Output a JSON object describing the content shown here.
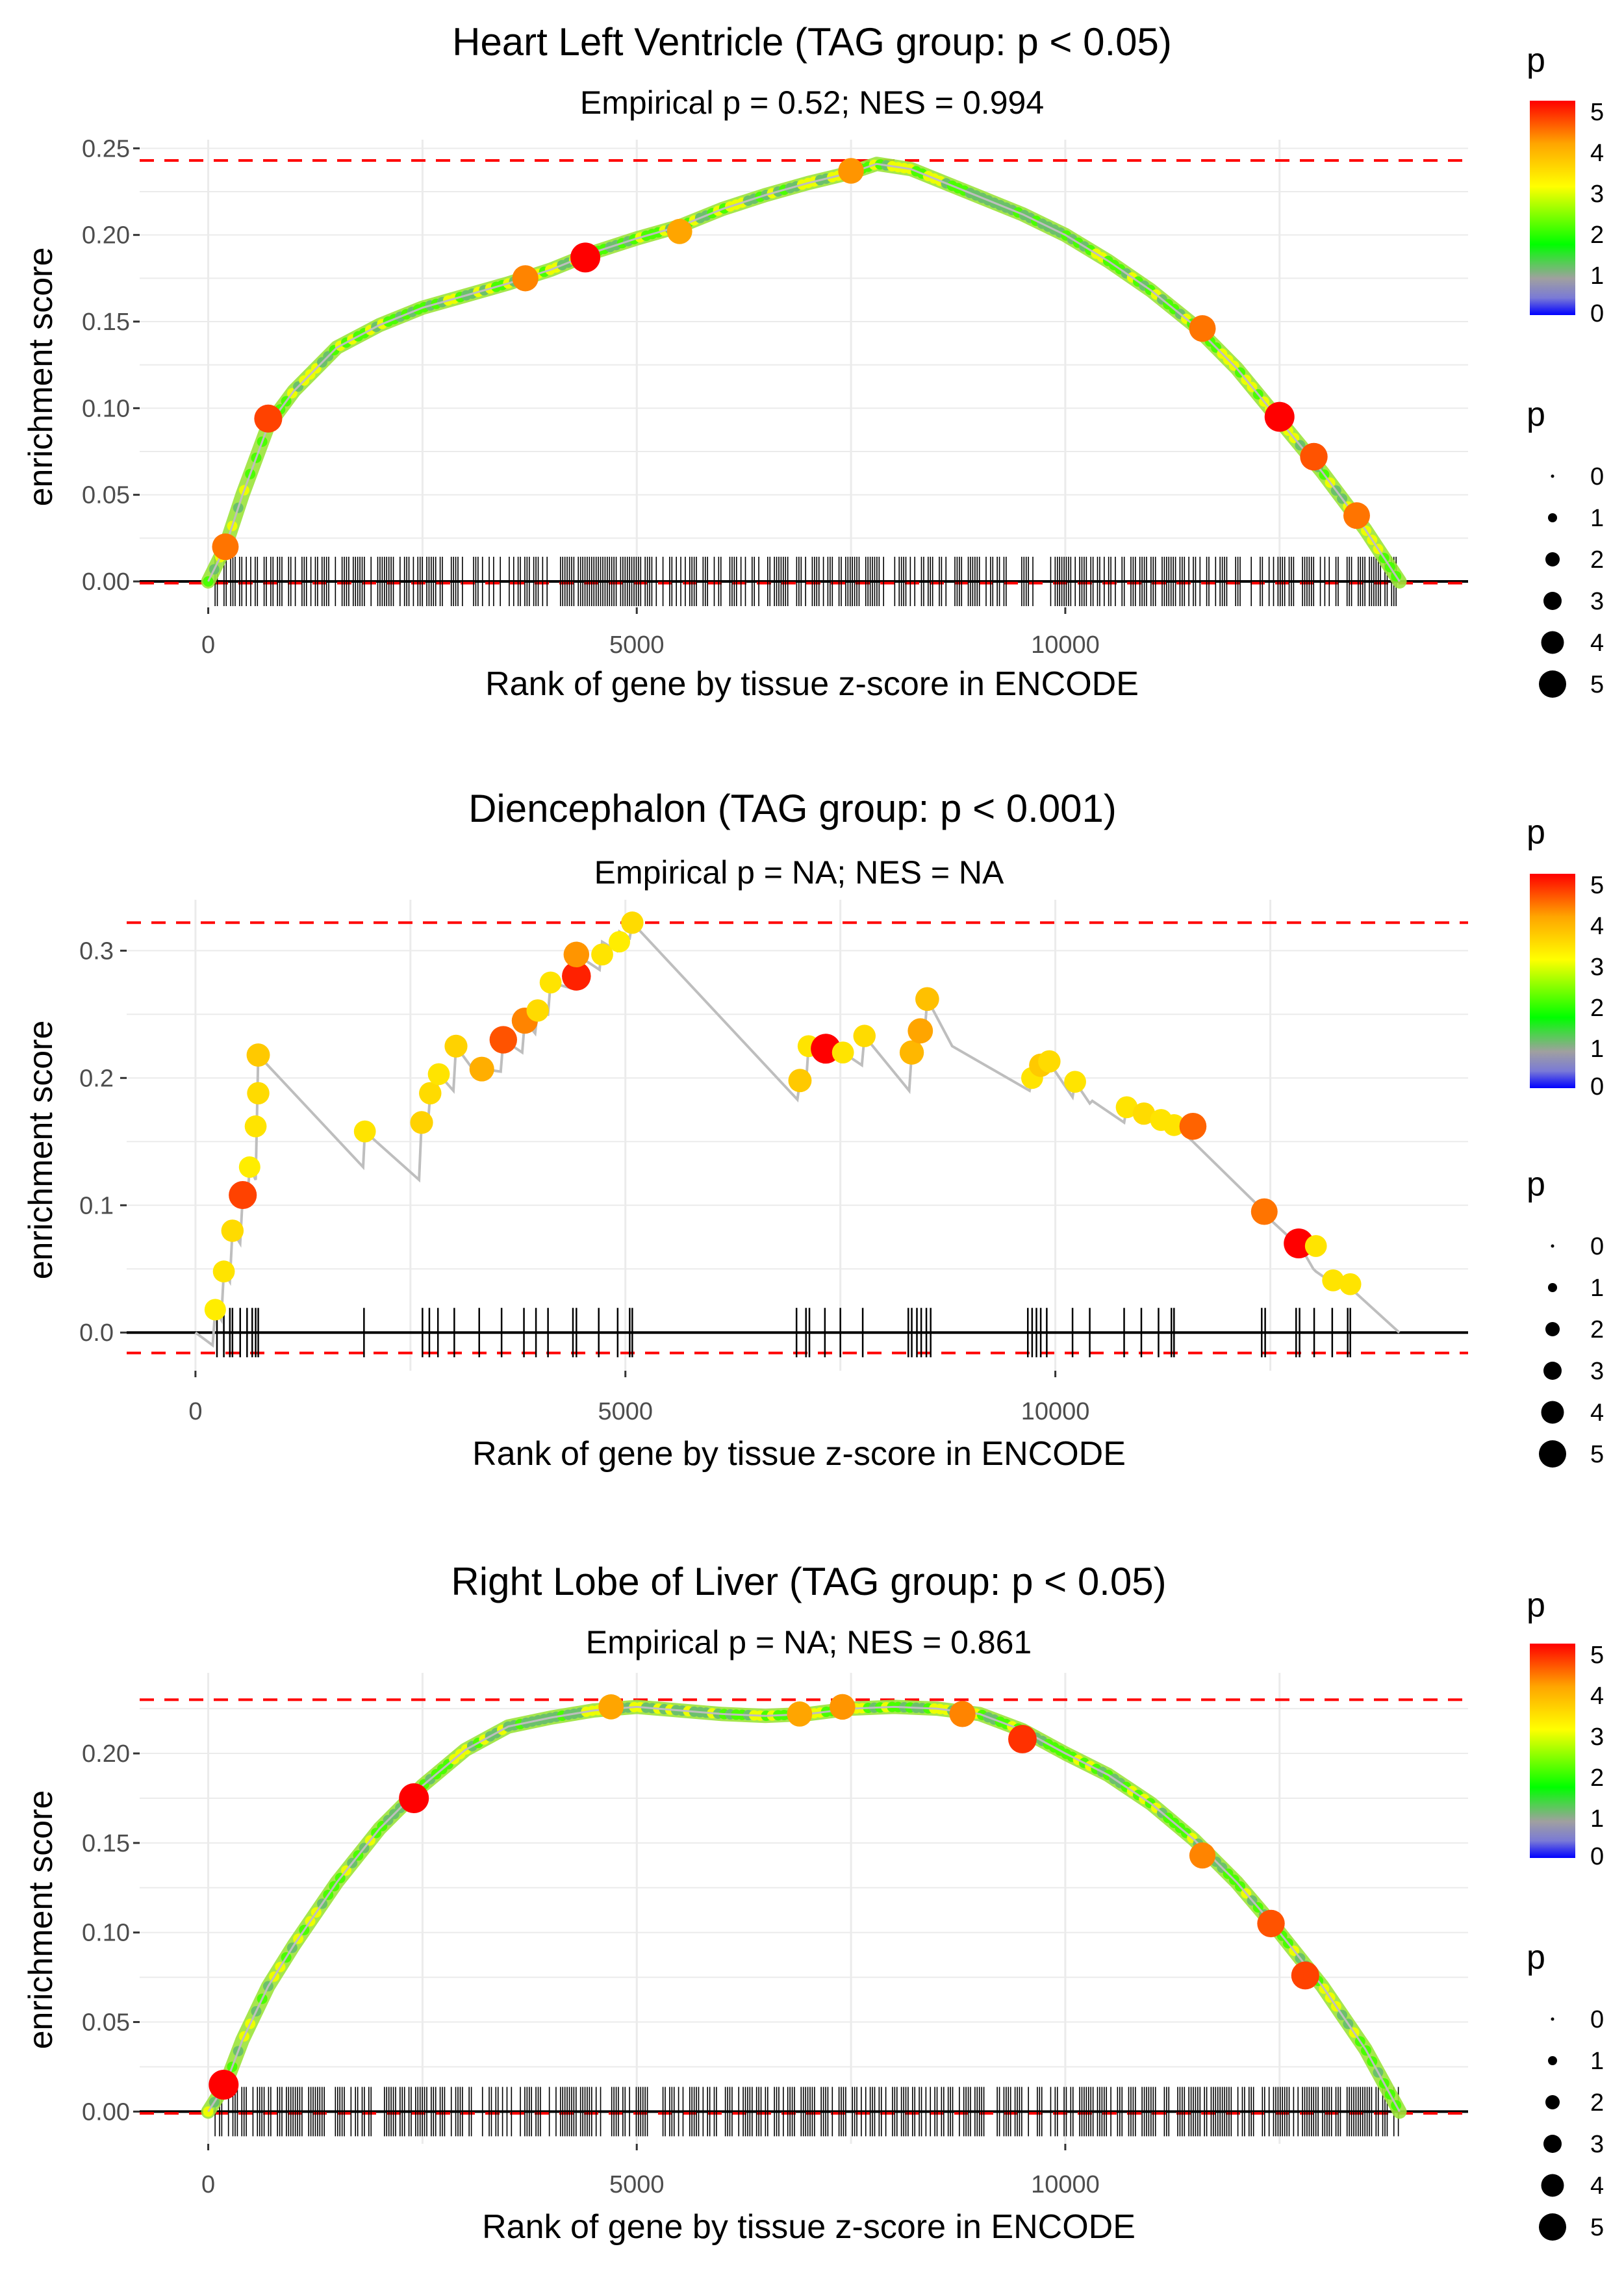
{
  "colors": {
    "background": "#ffffff",
    "gridline": "#ebebeb",
    "threshold": "#ff0000",
    "curve": "#bebebe",
    "rug": "#000000",
    "legend_point": "#000000"
  },
  "chart_data": [
    {
      "type": "line",
      "title": "Heart Left Ventricle (TAG group: p < 0.05)",
      "subtitle": "Empirical p = 0.52; NES = 0.994",
      "xlabel": "Rank of gene by tissue z-score in ENCODE",
      "ylabel": "enrichment score",
      "xlim": [
        -800,
        14700
      ],
      "ylim": [
        -0.015,
        0.255
      ],
      "x_ticks": [
        0,
        5000,
        10000
      ],
      "x_tick_labels": [
        "0",
        "5000",
        "10000"
      ],
      "y_ticks": [
        0,
        0.05,
        0.1,
        0.15,
        0.2,
        0.25
      ],
      "y_tick_labels": [
        "0.00",
        "0.05",
        "0.10",
        "0.15",
        "0.20",
        "0.25"
      ],
      "threshold_upper": 0.243,
      "threshold_lower": -0.001,
      "rug_mode": "dense",
      "rug_range": [
        80,
        13900
      ],
      "curve": {
        "x": [
          0,
          200,
          400,
          700,
          1000,
          1500,
          2000,
          2500,
          3000,
          3500,
          4000,
          4500,
          5000,
          5500,
          6000,
          6500,
          7000,
          7500,
          7800,
          8200,
          8500,
          9000,
          9500,
          10000,
          10500,
          11000,
          11500,
          12000,
          12500,
          13000,
          13500,
          13900
        ],
        "y": [
          0,
          0.02,
          0.05,
          0.09,
          0.11,
          0.135,
          0.148,
          0.158,
          0.165,
          0.172,
          0.18,
          0.19,
          0.198,
          0.205,
          0.215,
          0.223,
          0.23,
          0.236,
          0.241,
          0.238,
          0.232,
          0.222,
          0.212,
          0.2,
          0.185,
          0.168,
          0.148,
          0.123,
          0.093,
          0.063,
          0.03,
          0.0
        ]
      },
      "highlight_points": [
        {
          "x": 200,
          "y": 0.02,
          "p": 4.3
        },
        {
          "x": 700,
          "y": 0.094,
          "p": 4.6
        },
        {
          "x": 3700,
          "y": 0.175,
          "p": 4.2
        },
        {
          "x": 4400,
          "y": 0.187,
          "p": 5.0
        },
        {
          "x": 5500,
          "y": 0.202,
          "p": 4.0
        },
        {
          "x": 7500,
          "y": 0.237,
          "p": 4.1
        },
        {
          "x": 11600,
          "y": 0.146,
          "p": 4.3
        },
        {
          "x": 12500,
          "y": 0.095,
          "p": 5.0
        },
        {
          "x": 12900,
          "y": 0.072,
          "p": 4.5
        },
        {
          "x": 13400,
          "y": 0.038,
          "p": 4.3
        }
      ]
    },
    {
      "type": "line",
      "title": "Diencephalon (TAG group: p < 0.001)",
      "subtitle": "Empirical p = NA; NES = NA",
      "xlabel": "Rank of gene by tissue z-score in ENCODE",
      "ylabel": "enrichment score",
      "xlim": [
        -800,
        14800
      ],
      "ylim": [
        -0.03,
        0.34
      ],
      "x_ticks": [
        0,
        5000,
        10000
      ],
      "x_tick_labels": [
        "0",
        "5000",
        "10000"
      ],
      "y_ticks": [
        0,
        0.1,
        0.2,
        0.3
      ],
      "y_tick_labels": [
        "0.0",
        "0.1",
        "0.2",
        "0.3"
      ],
      "threshold_upper": 0.322,
      "threshold_lower": -0.016,
      "rug_mode": "hits",
      "curve": {
        "x": [
          0,
          200,
          230,
          300,
          330,
          400,
          430,
          520,
          550,
          600,
          630,
          700,
          730,
          1950,
          1970,
          2600,
          2630,
          2700,
          2730,
          2800,
          2830,
          3000,
          3030,
          3300,
          3330,
          3550,
          3580,
          3800,
          3830,
          3950,
          3980,
          4100,
          4130,
          4400,
          4430,
          4700,
          4730,
          4900,
          4930,
          5050,
          5080,
          7000,
          7030,
          7100,
          7130,
          7300,
          7330,
          7500,
          7530,
          7750,
          7780,
          8300,
          8330,
          8400,
          8430,
          8480,
          8510,
          8800,
          9700,
          9730,
          9800,
          9830,
          9900,
          9930,
          10000,
          10200,
          10230,
          10400,
          10430,
          10800,
          10830,
          11000,
          11030,
          11200,
          11230,
          11350,
          11380,
          11600,
          12400,
          12430,
          12800,
          12830,
          13000,
          13030,
          13200,
          13230,
          13400,
          13430,
          14000
        ],
        "y": [
          0,
          -0.01,
          0.018,
          0.01,
          0.048,
          0.04,
          0.08,
          0.07,
          0.108,
          0.1,
          0.13,
          0.12,
          0.218,
          0.13,
          0.158,
          0.12,
          0.165,
          0.16,
          0.188,
          0.185,
          0.203,
          0.19,
          0.225,
          0.2,
          0.207,
          0.205,
          0.23,
          0.22,
          0.245,
          0.235,
          0.253,
          0.25,
          0.275,
          0.27,
          0.297,
          0.285,
          0.307,
          0.3,
          0.315,
          0.31,
          0.322,
          0.183,
          0.198,
          0.195,
          0.225,
          0.213,
          0.223,
          0.213,
          0.22,
          0.21,
          0.233,
          0.19,
          0.22,
          0.215,
          0.237,
          0.235,
          0.262,
          0.225,
          0.19,
          0.2,
          0.195,
          0.21,
          0.205,
          0.213,
          0.205,
          0.185,
          0.197,
          0.18,
          0.182,
          0.165,
          0.177,
          0.165,
          0.172,
          0.162,
          0.167,
          0.157,
          0.163,
          0.15,
          0.097,
          0.093,
          0.07,
          0.07,
          0.05,
          0.048,
          0.04,
          0.041,
          0.04,
          0.035,
          0.0
        ]
      },
      "highlight_points": [
        {
          "x": 230,
          "y": 0.018,
          "p": 3.2
        },
        {
          "x": 330,
          "y": 0.048,
          "p": 3.3
        },
        {
          "x": 430,
          "y": 0.08,
          "p": 3.4
        },
        {
          "x": 550,
          "y": 0.108,
          "p": 4.6
        },
        {
          "x": 630,
          "y": 0.13,
          "p": 3.2
        },
        {
          "x": 700,
          "y": 0.162,
          "p": 3.3
        },
        {
          "x": 730,
          "y": 0.188,
          "p": 3.4
        },
        {
          "x": 730,
          "y": 0.218,
          "p": 3.6
        },
        {
          "x": 1970,
          "y": 0.158,
          "p": 3.3
        },
        {
          "x": 2630,
          "y": 0.165,
          "p": 3.5
        },
        {
          "x": 2730,
          "y": 0.188,
          "p": 3.4
        },
        {
          "x": 2830,
          "y": 0.203,
          "p": 3.3
        },
        {
          "x": 3030,
          "y": 0.225,
          "p": 3.5
        },
        {
          "x": 3330,
          "y": 0.207,
          "p": 3.9
        },
        {
          "x": 3580,
          "y": 0.23,
          "p": 4.5
        },
        {
          "x": 3830,
          "y": 0.245,
          "p": 4.2
        },
        {
          "x": 3980,
          "y": 0.253,
          "p": 3.4
        },
        {
          "x": 4130,
          "y": 0.275,
          "p": 3.3
        },
        {
          "x": 4430,
          "y": 0.28,
          "p": 4.8
        },
        {
          "x": 4430,
          "y": 0.297,
          "p": 4.1
        },
        {
          "x": 4730,
          "y": 0.297,
          "p": 3.3
        },
        {
          "x": 4930,
          "y": 0.307,
          "p": 3.2
        },
        {
          "x": 5080,
          "y": 0.322,
          "p": 3.4
        },
        {
          "x": 7030,
          "y": 0.198,
          "p": 3.6
        },
        {
          "x": 7130,
          "y": 0.225,
          "p": 3.3
        },
        {
          "x": 7330,
          "y": 0.223,
          "p": 5.0
        },
        {
          "x": 7530,
          "y": 0.22,
          "p": 3.3
        },
        {
          "x": 7780,
          "y": 0.233,
          "p": 3.4
        },
        {
          "x": 8330,
          "y": 0.22,
          "p": 3.8
        },
        {
          "x": 8430,
          "y": 0.237,
          "p": 4.0
        },
        {
          "x": 8510,
          "y": 0.262,
          "p": 3.7
        },
        {
          "x": 9730,
          "y": 0.2,
          "p": 3.3
        },
        {
          "x": 9830,
          "y": 0.21,
          "p": 3.6
        },
        {
          "x": 9930,
          "y": 0.213,
          "p": 3.4
        },
        {
          "x": 10230,
          "y": 0.197,
          "p": 3.3
        },
        {
          "x": 10830,
          "y": 0.177,
          "p": 3.3
        },
        {
          "x": 11030,
          "y": 0.172,
          "p": 3.4
        },
        {
          "x": 11230,
          "y": 0.167,
          "p": 3.3
        },
        {
          "x": 11380,
          "y": 0.163,
          "p": 3.3
        },
        {
          "x": 11600,
          "y": 0.162,
          "p": 4.4
        },
        {
          "x": 12430,
          "y": 0.095,
          "p": 4.3
        },
        {
          "x": 12830,
          "y": 0.07,
          "p": 5.0
        },
        {
          "x": 13030,
          "y": 0.068,
          "p": 3.3
        },
        {
          "x": 13230,
          "y": 0.041,
          "p": 3.3
        },
        {
          "x": 13430,
          "y": 0.038,
          "p": 3.3
        }
      ],
      "rug_x": [
        250,
        330,
        400,
        430,
        520,
        600,
        660,
        700,
        730,
        1960,
        2640,
        2720,
        2820,
        3010,
        3300,
        3560,
        3820,
        3960,
        4100,
        4390,
        4430,
        4690,
        4910,
        5050,
        5080,
        6990,
        7100,
        7140,
        7320,
        7500,
        7760,
        8290,
        8330,
        8390,
        8440,
        8500,
        8550,
        9680,
        9730,
        9780,
        9830,
        9900,
        10200,
        10400,
        10800,
        11000,
        11200,
        11350,
        11380,
        12400,
        12440,
        12800,
        12840,
        13010,
        13220,
        13400,
        13430
      ]
    },
    {
      "type": "line",
      "title": "Right Lobe of Liver (TAG group: p < 0.05)",
      "subtitle": "Empirical p = NA; NES = 0.861",
      "xlabel": "Rank of gene by tissue z-score in ENCODE",
      "ylabel": "enrichment score",
      "xlim": [
        -800,
        14700
      ],
      "ylim": [
        -0.018,
        0.245
      ],
      "x_ticks": [
        0,
        5000,
        10000
      ],
      "x_tick_labels": [
        "0",
        "5000",
        "10000"
      ],
      "y_ticks": [
        0,
        0.05,
        0.1,
        0.15,
        0.2
      ],
      "y_tick_labels": [
        "0.00",
        "0.05",
        "0.10",
        "0.15",
        "0.20"
      ],
      "threshold_upper": 0.23,
      "threshold_lower": -0.001,
      "rug_mode": "dense",
      "rug_range": [
        80,
        13900
      ],
      "curve": {
        "x": [
          0,
          200,
          400,
          700,
          1000,
          1500,
          2000,
          2500,
          3000,
          3500,
          4000,
          4500,
          5000,
          5500,
          6000,
          6500,
          7000,
          7500,
          8000,
          8500,
          9000,
          9500,
          10000,
          10500,
          11000,
          11500,
          12000,
          12500,
          13000,
          13500,
          13900
        ],
        "y": [
          0,
          0.015,
          0.04,
          0.07,
          0.093,
          0.128,
          0.158,
          0.182,
          0.202,
          0.215,
          0.22,
          0.224,
          0.226,
          0.224,
          0.222,
          0.221,
          0.222,
          0.225,
          0.226,
          0.225,
          0.222,
          0.213,
          0.2,
          0.188,
          0.172,
          0.152,
          0.128,
          0.1,
          0.07,
          0.035,
          0.0
        ]
      },
      "highlight_points": [
        {
          "x": 180,
          "y": 0.015,
          "p": 5.0
        },
        {
          "x": 2400,
          "y": 0.175,
          "p": 5.0
        },
        {
          "x": 4700,
          "y": 0.226,
          "p": 4.0
        },
        {
          "x": 6900,
          "y": 0.222,
          "p": 4.0
        },
        {
          "x": 7400,
          "y": 0.226,
          "p": 4.1
        },
        {
          "x": 8800,
          "y": 0.222,
          "p": 4.2
        },
        {
          "x": 9500,
          "y": 0.208,
          "p": 4.7
        },
        {
          "x": 11600,
          "y": 0.143,
          "p": 4.2
        },
        {
          "x": 12400,
          "y": 0.105,
          "p": 4.5
        },
        {
          "x": 12800,
          "y": 0.076,
          "p": 4.6
        }
      ]
    }
  ],
  "legends": {
    "color_title": "p",
    "color_labels": [
      "5",
      "4",
      "3",
      "2",
      "1",
      "0"
    ],
    "size_title": "p",
    "size_labels": [
      "0",
      "1",
      "2",
      "3",
      "4",
      "5"
    ]
  }
}
